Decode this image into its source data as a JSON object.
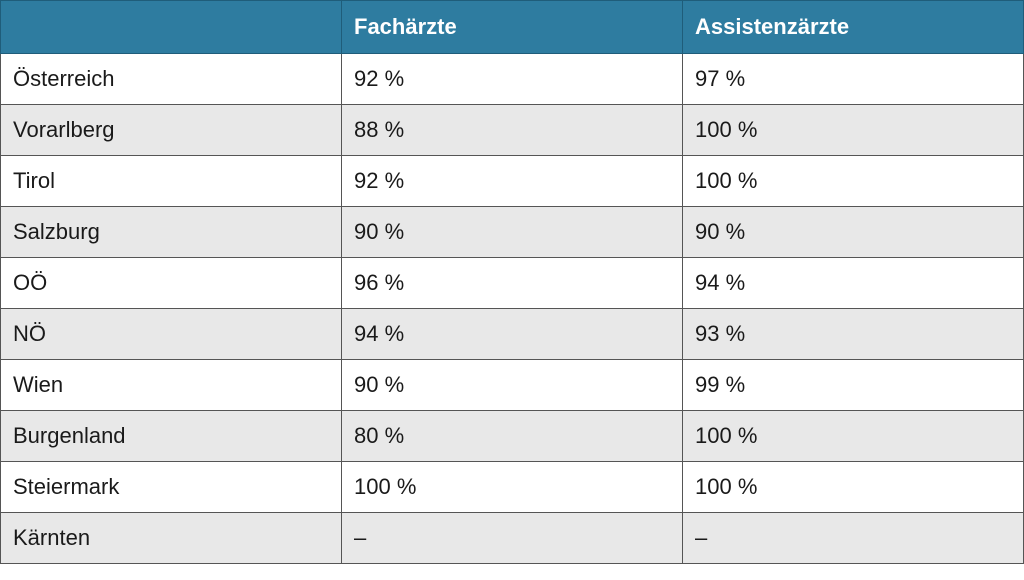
{
  "table": {
    "headers": [
      "",
      "Fachärzte",
      "Assistenzärzte"
    ],
    "rows": [
      {
        "region": "Österreich",
        "fachaerzte": "92 %",
        "assistenzaerzte": "97 %"
      },
      {
        "region": "Vorarlberg",
        "fachaerzte": "88 %",
        "assistenzaerzte": "100 %"
      },
      {
        "region": "Tirol",
        "fachaerzte": "92 %",
        "assistenzaerzte": "100 %"
      },
      {
        "region": "Salzburg",
        "fachaerzte": "90 %",
        "assistenzaerzte": "90 %"
      },
      {
        "region": "OÖ",
        "fachaerzte": "96 %",
        "assistenzaerzte": "94 %"
      },
      {
        "region": "NÖ",
        "fachaerzte": "94 %",
        "assistenzaerzte": "93 %"
      },
      {
        "region": "Wien",
        "fachaerzte": "90 %",
        "assistenzaerzte": "99 %"
      },
      {
        "region": "Burgenland",
        "fachaerzte": "80 %",
        "assistenzaerzte": "100 %"
      },
      {
        "region": "Steiermark",
        "fachaerzte": "100 %",
        "assistenzaerzte": "100 %"
      },
      {
        "region": "Kärnten",
        "fachaerzte": "–",
        "assistenzaerzte": "–"
      }
    ]
  },
  "colors": {
    "header_bg": "#2e7ca0",
    "header_text": "#ffffff",
    "row_alt_bg": "#e8e8e8",
    "border": "#555555"
  }
}
